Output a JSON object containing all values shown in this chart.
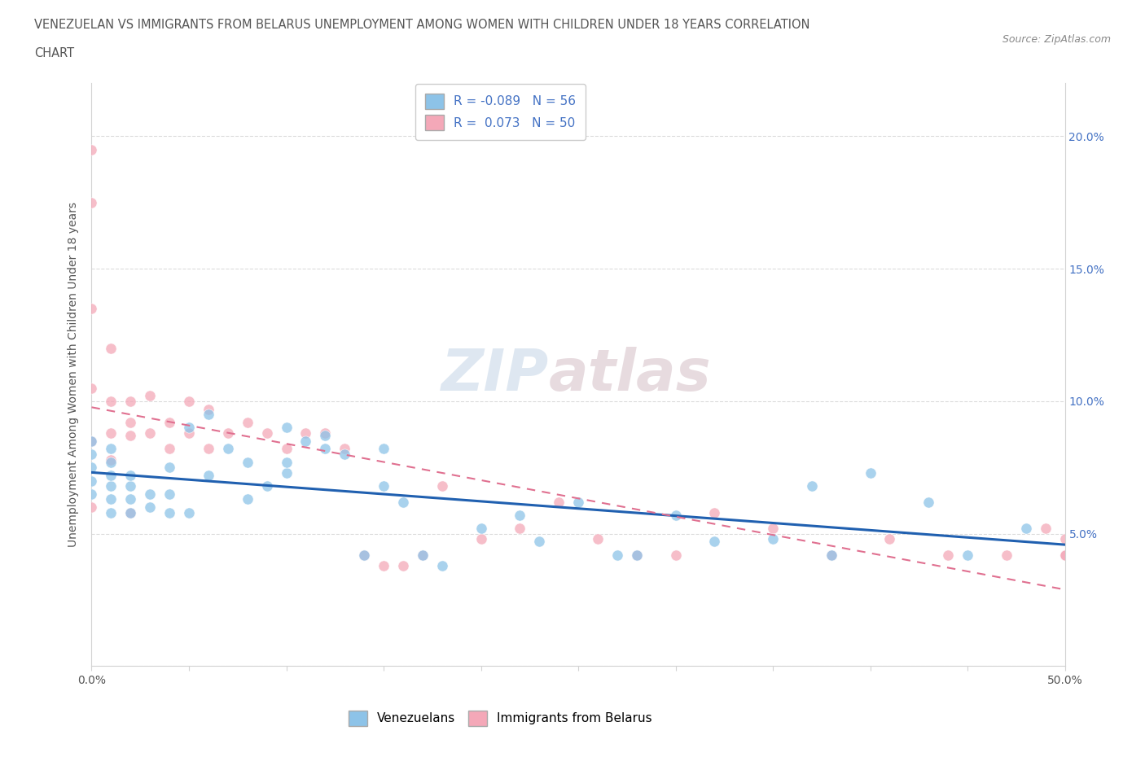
{
  "title_line1": "VENEZUELAN VS IMMIGRANTS FROM BELARUS UNEMPLOYMENT AMONG WOMEN WITH CHILDREN UNDER 18 YEARS CORRELATION",
  "title_line2": "CHART",
  "source": "Source: ZipAtlas.com",
  "ylabel": "Unemployment Among Women with Children Under 18 years",
  "xlim": [
    0.0,
    0.5
  ],
  "ylim": [
    0.0,
    0.22
  ],
  "R_venezuelan": -0.089,
  "N_venezuelan": 56,
  "R_belarus": 0.073,
  "N_belarus": 50,
  "color_venezuelan": "#8dc3e8",
  "color_belarus": "#f4a8b8",
  "color_line_venezuelan": "#2060b0",
  "color_line_belarus": "#e07090",
  "watermark_zip": "ZIP",
  "watermark_atlas": "atlas",
  "venezuelan_x": [
    0.0,
    0.0,
    0.0,
    0.0,
    0.0,
    0.01,
    0.01,
    0.01,
    0.01,
    0.01,
    0.01,
    0.02,
    0.02,
    0.02,
    0.02,
    0.03,
    0.03,
    0.04,
    0.04,
    0.04,
    0.05,
    0.05,
    0.06,
    0.06,
    0.07,
    0.08,
    0.08,
    0.09,
    0.1,
    0.1,
    0.1,
    0.11,
    0.12,
    0.12,
    0.13,
    0.14,
    0.15,
    0.15,
    0.16,
    0.17,
    0.18,
    0.2,
    0.22,
    0.23,
    0.25,
    0.27,
    0.28,
    0.3,
    0.32,
    0.35,
    0.37,
    0.38,
    0.4,
    0.43,
    0.45,
    0.48
  ],
  "venezuelan_y": [
    0.065,
    0.07,
    0.075,
    0.08,
    0.085,
    0.058,
    0.063,
    0.068,
    0.072,
    0.077,
    0.082,
    0.058,
    0.063,
    0.068,
    0.072,
    0.06,
    0.065,
    0.058,
    0.065,
    0.075,
    0.058,
    0.09,
    0.095,
    0.072,
    0.082,
    0.063,
    0.077,
    0.068,
    0.09,
    0.073,
    0.077,
    0.085,
    0.087,
    0.082,
    0.08,
    0.042,
    0.068,
    0.082,
    0.062,
    0.042,
    0.038,
    0.052,
    0.057,
    0.047,
    0.062,
    0.042,
    0.042,
    0.057,
    0.047,
    0.048,
    0.068,
    0.042,
    0.073,
    0.062,
    0.042,
    0.052
  ],
  "belarus_x": [
    0.0,
    0.0,
    0.0,
    0.0,
    0.0,
    0.0,
    0.01,
    0.01,
    0.01,
    0.01,
    0.02,
    0.02,
    0.02,
    0.02,
    0.03,
    0.03,
    0.04,
    0.04,
    0.05,
    0.05,
    0.06,
    0.06,
    0.07,
    0.08,
    0.09,
    0.1,
    0.11,
    0.12,
    0.13,
    0.14,
    0.15,
    0.16,
    0.17,
    0.18,
    0.2,
    0.22,
    0.24,
    0.26,
    0.28,
    0.3,
    0.32,
    0.35,
    0.38,
    0.41,
    0.44,
    0.47,
    0.49,
    0.5,
    0.5,
    0.5
  ],
  "belarus_y": [
    0.195,
    0.175,
    0.135,
    0.105,
    0.085,
    0.06,
    0.12,
    0.1,
    0.088,
    0.078,
    0.1,
    0.092,
    0.087,
    0.058,
    0.102,
    0.088,
    0.092,
    0.082,
    0.1,
    0.088,
    0.097,
    0.082,
    0.088,
    0.092,
    0.088,
    0.082,
    0.088,
    0.088,
    0.082,
    0.042,
    0.038,
    0.038,
    0.042,
    0.068,
    0.048,
    0.052,
    0.062,
    0.048,
    0.042,
    0.042,
    0.058,
    0.052,
    0.042,
    0.048,
    0.042,
    0.042,
    0.052,
    0.042,
    0.048,
    0.042
  ]
}
